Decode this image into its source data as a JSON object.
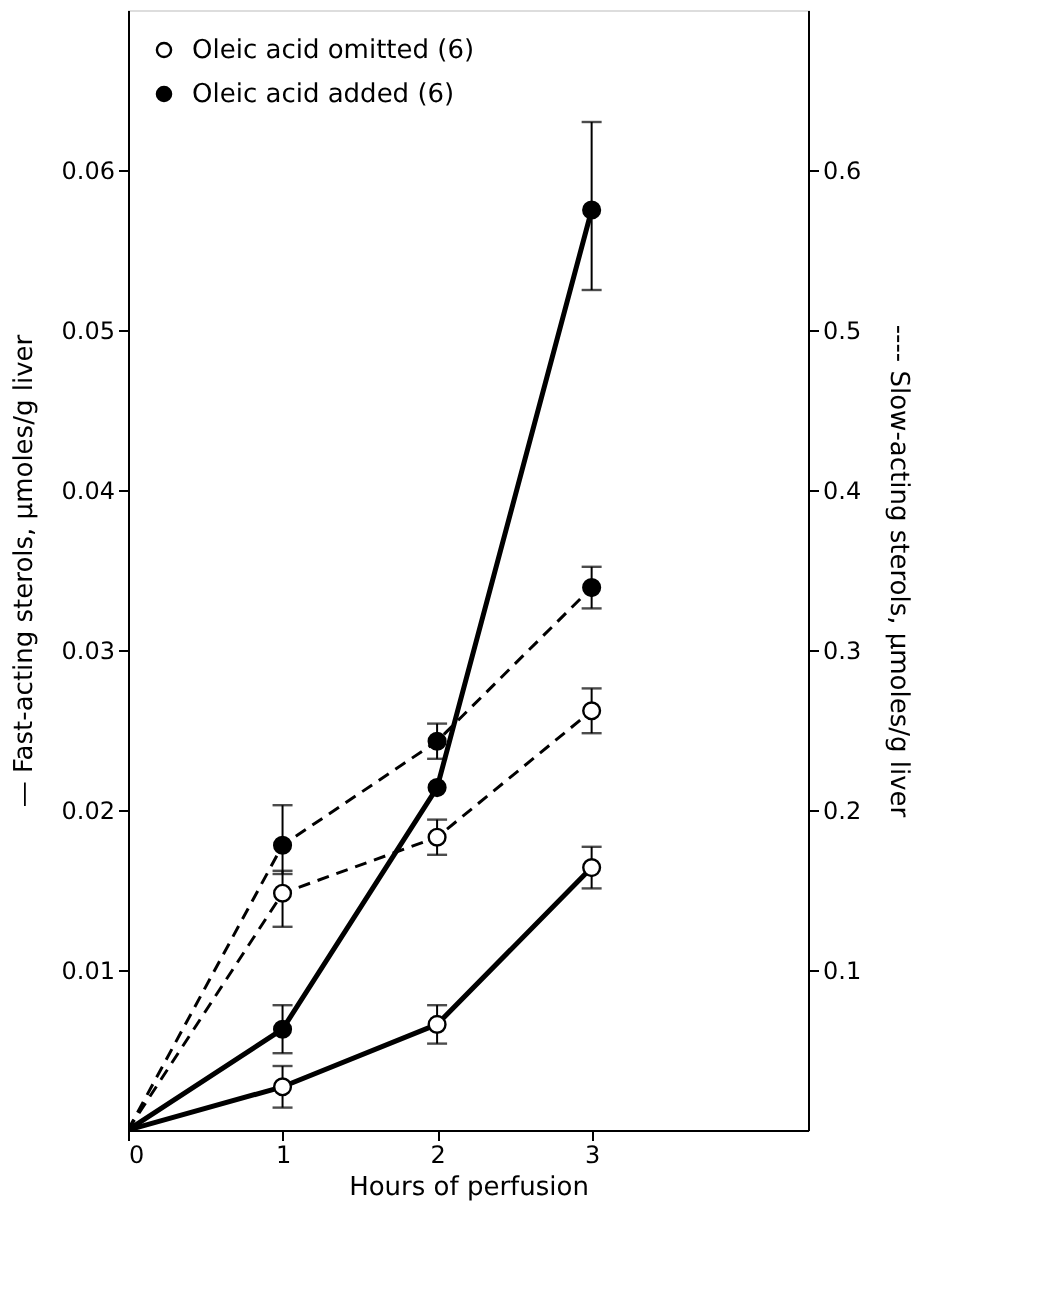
{
  "chart_data": {
    "type": "line",
    "xlabel": "Hours of perfusion",
    "ylabel": "— Fast-acting sterols,    μmoles/g liver",
    "y2label": "---- Slow-acting sterols,    μmoles/g liver",
    "x": [
      0,
      1,
      2,
      3
    ],
    "xlim": [
      0,
      4.4
    ],
    "xticks": [
      0,
      1,
      2,
      3
    ],
    "ylim": [
      0,
      0.07
    ],
    "yticks": [
      0.01,
      0.02,
      0.03,
      0.04,
      0.05,
      0.06
    ],
    "y2lim": [
      0,
      0.7
    ],
    "y2ticks": [
      0.1,
      0.2,
      0.3,
      0.4,
      0.5,
      0.6
    ],
    "grid": false,
    "legend": "top left",
    "series": [
      {
        "name": "Oleic acid omitted (6)",
        "color": "#000000",
        "marker": "circle",
        "line_style": "solid",
        "values": [
          0,
          0.0027,
          0.0066,
          0.0164
        ],
        "errors": [
          null,
          0.0013,
          0.0012,
          0.0013
        ]
      },
      {
        "name": "Oleic acid added (6)",
        "color": "#000000",
        "marker": "circle_filled",
        "line_style": "solid",
        "values": [
          0,
          0.0063,
          0.0214,
          0.0575
        ],
        "errors": [
          null,
          0.0015,
          null,
          [
            0.0525,
            0.063
          ]
        ]
      },
      {
        "color": "#000000",
        "marker": "circle",
        "line_style": "dashed",
        "axis": "y2",
        "values": [
          0,
          0.148,
          0.183,
          0.262
        ],
        "errors": [
          null,
          [
            0.127,
            0.162
          ],
          0.011,
          0.014
        ]
      },
      {
        "color": "#000000",
        "marker": "circle_filled",
        "line_style": "dashed",
        "axis": "y2",
        "values": [
          0,
          0.178,
          0.243,
          0.339
        ],
        "errors": [
          null,
          [
            0.16,
            0.203
          ],
          0.011,
          0.013
        ]
      }
    ]
  }
}
